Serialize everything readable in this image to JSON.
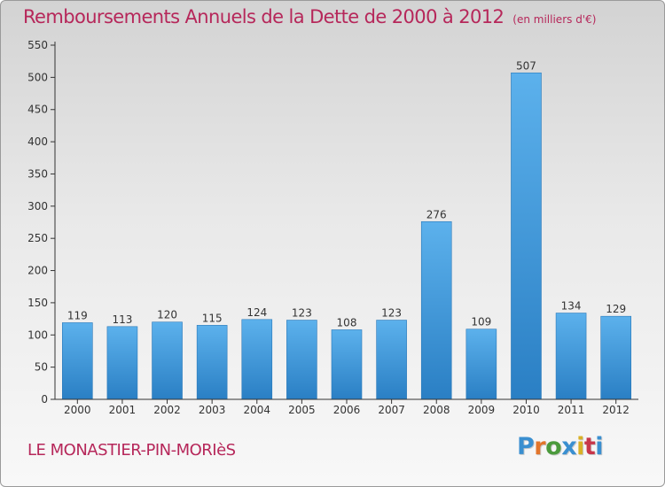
{
  "chart_data": {
    "type": "bar",
    "title": "Remboursements Annuels de la Dette de 2000 à 2012",
    "unit_note": "(en milliers d'€)",
    "categories": [
      "2000",
      "2001",
      "2002",
      "2003",
      "2004",
      "2005",
      "2006",
      "2007",
      "2008",
      "2009",
      "2010",
      "2011",
      "2012"
    ],
    "values": [
      119,
      113,
      120,
      115,
      124,
      123,
      108,
      123,
      276,
      109,
      507,
      134,
      129
    ],
    "ylim": [
      0,
      550
    ],
    "yticks": [
      0,
      50,
      100,
      150,
      200,
      250,
      300,
      350,
      400,
      450,
      500,
      550
    ],
    "grid": false,
    "bar_color": "#3a94d8",
    "xlabel": "",
    "ylabel": ""
  },
  "commune": "LE MONASTIER-PIN-MORIèS",
  "logo": {
    "text": "Proxiti",
    "letter_colors": [
      "#3a8fd0",
      "#e2752b",
      "#4b9a3c",
      "#3a8fd0",
      "#d9b126",
      "#c7364a",
      "#3a8fd0"
    ]
  },
  "colors": {
    "title": "#b6275a",
    "axis": "#333333"
  }
}
